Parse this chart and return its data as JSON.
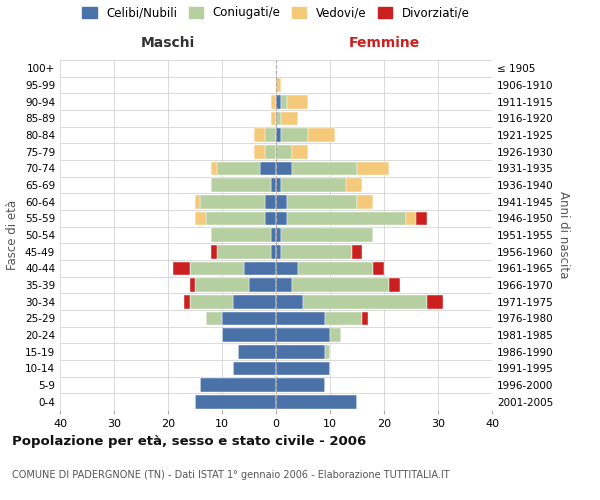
{
  "age_groups": [
    "0-4",
    "5-9",
    "10-14",
    "15-19",
    "20-24",
    "25-29",
    "30-34",
    "35-39",
    "40-44",
    "45-49",
    "50-54",
    "55-59",
    "60-64",
    "65-69",
    "70-74",
    "75-79",
    "80-84",
    "85-89",
    "90-94",
    "95-99",
    "100+"
  ],
  "birth_years": [
    "2001-2005",
    "1996-2000",
    "1991-1995",
    "1986-1990",
    "1981-1985",
    "1976-1980",
    "1971-1975",
    "1966-1970",
    "1961-1965",
    "1956-1960",
    "1951-1955",
    "1946-1950",
    "1941-1945",
    "1936-1940",
    "1931-1935",
    "1926-1930",
    "1921-1925",
    "1916-1920",
    "1911-1915",
    "1906-1910",
    "≤ 1905"
  ],
  "colors": {
    "celibi": "#4a72a8",
    "coniugati": "#b5cfa0",
    "vedovi": "#f5c97a",
    "divorziati": "#cc2020"
  },
  "maschi": {
    "celibi": [
      15,
      14,
      8,
      7,
      10,
      10,
      8,
      5,
      6,
      1,
      1,
      2,
      2,
      1,
      3,
      0,
      0,
      0,
      0,
      0,
      0
    ],
    "coniugati": [
      0,
      0,
      0,
      0,
      0,
      3,
      8,
      10,
      10,
      10,
      11,
      11,
      12,
      11,
      8,
      2,
      2,
      0,
      0,
      0,
      0
    ],
    "vedovi": [
      0,
      0,
      0,
      0,
      0,
      0,
      0,
      0,
      0,
      0,
      0,
      2,
      1,
      0,
      1,
      2,
      2,
      1,
      1,
      0,
      0
    ],
    "divorziati": [
      0,
      0,
      0,
      0,
      0,
      0,
      1,
      1,
      3,
      1,
      0,
      0,
      0,
      0,
      0,
      0,
      0,
      0,
      0,
      0,
      0
    ]
  },
  "femmine": {
    "celibi": [
      15,
      9,
      10,
      9,
      10,
      9,
      5,
      3,
      4,
      1,
      1,
      2,
      2,
      1,
      3,
      0,
      1,
      0,
      1,
      0,
      0
    ],
    "coniugati": [
      0,
      0,
      0,
      1,
      2,
      7,
      23,
      18,
      14,
      13,
      17,
      22,
      13,
      12,
      12,
      3,
      5,
      1,
      1,
      0,
      0
    ],
    "vedovi": [
      0,
      0,
      0,
      0,
      0,
      0,
      0,
      0,
      0,
      0,
      0,
      2,
      3,
      3,
      6,
      3,
      5,
      3,
      4,
      1,
      0
    ],
    "divorziati": [
      0,
      0,
      0,
      0,
      0,
      1,
      3,
      2,
      2,
      2,
      0,
      2,
      0,
      0,
      0,
      0,
      0,
      0,
      0,
      0,
      0
    ]
  },
  "xlim": 40,
  "title": "Popolazione per età, sesso e stato civile - 2006",
  "subtitle": "COMUNE DI PADERGNONE (TN) - Dati ISTAT 1° gennaio 2006 - Elaborazione TUTTITALIA.IT",
  "xlabel_left": "Maschi",
  "xlabel_right": "Femmine",
  "ylabel_left": "Fasce di età",
  "ylabel_right": "Anni di nascita",
  "legend_labels": [
    "Celibi/Nubili",
    "Coniugati/e",
    "Vedovi/e",
    "Divorziati/e"
  ],
  "background_color": "#ffffff",
  "grid_color": "#cccccc"
}
